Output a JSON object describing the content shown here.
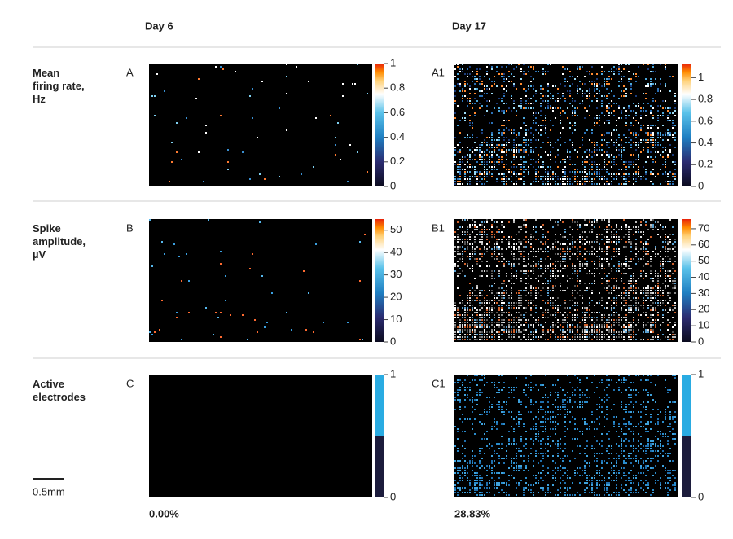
{
  "header": {
    "left": "Day 6",
    "right": "Day 17"
  },
  "rows": [
    {
      "label": [
        "Mean",
        "firing rate,",
        "Hz"
      ],
      "panels": [
        {
          "letter": "A",
          "range": [
            0,
            1
          ],
          "ticks": [
            0,
            0.2,
            0.4,
            0.6,
            0.8,
            1
          ]
        },
        {
          "letter": "A1",
          "range": [
            0,
            1.13
          ],
          "ticks": [
            0,
            0.2,
            0.4,
            0.6,
            0.8,
            1
          ]
        }
      ]
    },
    {
      "label": [
        "Spike",
        "amplitude,",
        "µV"
      ],
      "panels": [
        {
          "letter": "B",
          "range": [
            0,
            55
          ],
          "ticks": [
            0,
            10,
            20,
            30,
            40,
            50
          ]
        },
        {
          "letter": "B1",
          "range": [
            0,
            76
          ],
          "ticks": [
            0,
            10,
            20,
            30,
            40,
            50,
            60,
            70
          ]
        }
      ]
    },
    {
      "label": [
        "Active",
        "electrodes"
      ],
      "panels": [
        {
          "letter": "C",
          "range": [
            0,
            1
          ],
          "ticks": [
            0,
            1
          ]
        },
        {
          "letter": "C1",
          "range": [
            0,
            1
          ],
          "ticks": [
            0,
            1
          ]
        }
      ]
    }
  ],
  "footer": {
    "left": "0.00%",
    "right": "28.83%"
  },
  "scale_bar": "0.5mm"
}
